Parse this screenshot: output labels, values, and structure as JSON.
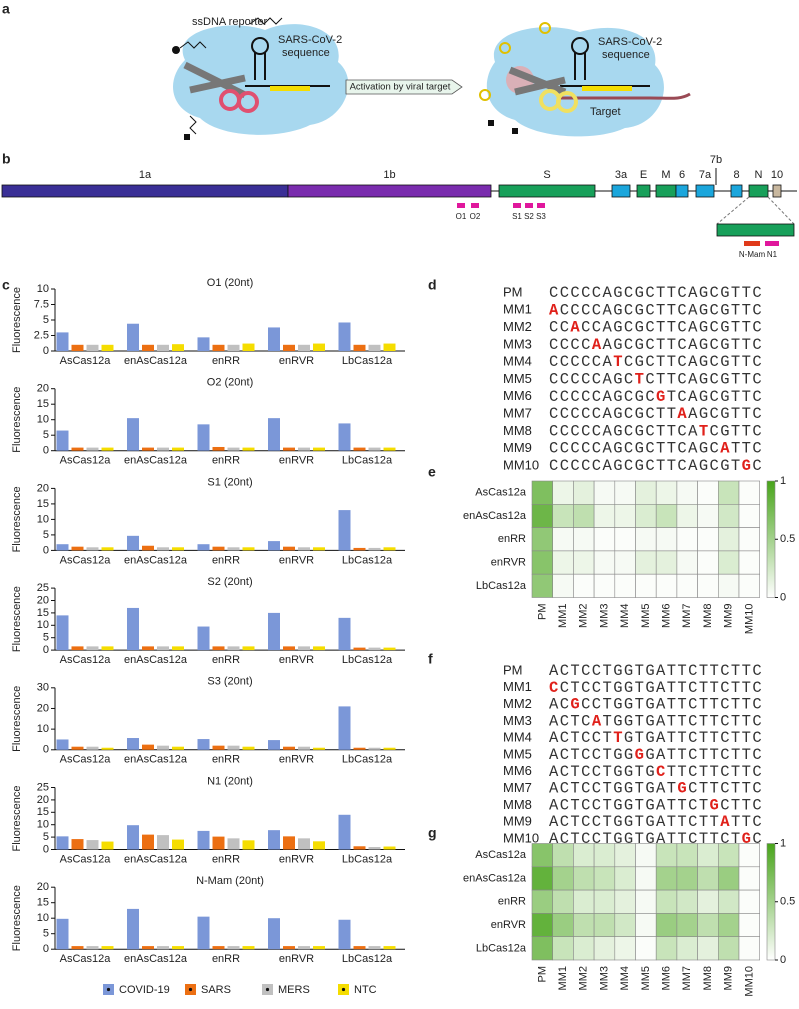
{
  "panel_labels": [
    "a",
    "b",
    "c",
    "d",
    "e",
    "f",
    "g"
  ],
  "schematic": {
    "reporter": "ssDNA reporter",
    "guide_left": [
      "SARS-CoV-2",
      "sequence"
    ],
    "activation": "Activation by viral target",
    "guide_right": [
      "SARS-CoV-2",
      "sequence"
    ],
    "target": "Target"
  },
  "genome": {
    "segments": [
      {
        "label": "1a",
        "color": "#3a2f96"
      },
      {
        "label": "1b",
        "color": "#7a2cae"
      },
      {
        "label": "S",
        "color": "#18a05a"
      },
      {
        "label": "3a",
        "color": "#1ba6dc"
      },
      {
        "label": "E",
        "color": "#18a05a"
      },
      {
        "label": "M",
        "color": "#18a05a"
      },
      {
        "label": "6",
        "color": "#1ba6dc"
      },
      {
        "label": "7a",
        "color": "#1ba6dc"
      },
      {
        "label": "8",
        "color": "#1ba6dc"
      },
      {
        "label": "N",
        "color": "#18a05a"
      },
      {
        "label": "10",
        "color": "#c8b79e"
      }
    ],
    "extra_label": "7b",
    "markers": [
      {
        "label": "O1",
        "color": "#e0179c"
      },
      {
        "label": "O2",
        "color": "#e0179c"
      },
      {
        "label": "S1",
        "color": "#e0179c"
      },
      {
        "label": "S2",
        "color": "#e0179c"
      },
      {
        "label": "S3",
        "color": "#e0179c"
      }
    ],
    "zoom_markers": [
      {
        "label": "N-Mam",
        "color": "#e03a1a"
      },
      {
        "label": "N1",
        "color": "#e0179c"
      }
    ]
  },
  "legend": [
    {
      "name": "COVID-19",
      "color": "#7b97d8"
    },
    {
      "name": "SARS",
      "color": "#ec6f12"
    },
    {
      "name": "MERS",
      "color": "#c0c0c0"
    },
    {
      "name": "NTC",
      "color": "#f5dd00"
    }
  ],
  "chart_data": [
    {
      "type": "bar",
      "title": "O1 (20nt)",
      "ylabel": "Fluorescence",
      "categories": [
        "AsCas12a",
        "enAsCas12a",
        "enRR",
        "enRVR",
        "LbCas12a"
      ],
      "series": [
        {
          "values": [
            3,
            4.4,
            2.2,
            3.8,
            4.6
          ]
        },
        {
          "values": [
            1,
            1,
            1,
            1,
            1
          ]
        },
        {
          "values": [
            1,
            1,
            1,
            1,
            1
          ]
        },
        {
          "values": [
            1,
            1.1,
            1.2,
            1.2,
            1.2
          ]
        }
      ],
      "ylim": [
        0,
        10
      ],
      "yticks": [
        0,
        2.5,
        5,
        7.5,
        10
      ]
    },
    {
      "type": "bar",
      "title": "O2 (20nt)",
      "ylabel": "Fluorescence",
      "categories": [
        "AsCas12a",
        "enAsCas12a",
        "enRR",
        "enRVR",
        "LbCas12a"
      ],
      "series": [
        {
          "values": [
            6.5,
            10.5,
            8.5,
            10.5,
            8.8
          ]
        },
        {
          "values": [
            1,
            1,
            1.2,
            1,
            1
          ]
        },
        {
          "values": [
            1,
            1,
            1,
            1,
            1
          ]
        },
        {
          "values": [
            1,
            1,
            1,
            1,
            1
          ]
        }
      ],
      "ylim": [
        0,
        20
      ],
      "yticks": [
        0,
        5,
        10,
        15,
        20
      ]
    },
    {
      "type": "bar",
      "title": "S1 (20nt)",
      "ylabel": "Fluorescence",
      "categories": [
        "AsCas12a",
        "enAsCas12a",
        "enRR",
        "enRVR",
        "LbCas12a"
      ],
      "series": [
        {
          "values": [
            2,
            4.7,
            2,
            3,
            13
          ]
        },
        {
          "values": [
            1.2,
            1.5,
            1.2,
            1.2,
            0.8
          ]
        },
        {
          "values": [
            1,
            1,
            1,
            1,
            0.8
          ]
        },
        {
          "values": [
            1,
            1,
            1,
            1,
            1
          ]
        }
      ],
      "ylim": [
        0,
        20
      ],
      "yticks": [
        0,
        5,
        10,
        15,
        20
      ]
    },
    {
      "type": "bar",
      "title": "S2 (20nt)",
      "ylabel": "Fluorescence",
      "categories": [
        "AsCas12a",
        "enAsCas12a",
        "enRR",
        "enRVR",
        "LbCas12a"
      ],
      "series": [
        {
          "values": [
            14,
            17,
            9.5,
            15,
            13
          ]
        },
        {
          "values": [
            1.5,
            1.5,
            1.5,
            1.5,
            1
          ]
        },
        {
          "values": [
            1.5,
            1.5,
            1.5,
            1.5,
            1
          ]
        },
        {
          "values": [
            1.5,
            1.5,
            1.5,
            1.5,
            1
          ]
        }
      ],
      "ylim": [
        0,
        25
      ],
      "yticks": [
        0,
        5,
        10,
        15,
        20,
        25
      ]
    },
    {
      "type": "bar",
      "title": "S3 (20nt)",
      "ylabel": "Fluorescence",
      "categories": [
        "AsCas12a",
        "enAsCas12a",
        "enRR",
        "enRVR",
        "LbCas12a"
      ],
      "series": [
        {
          "values": [
            5,
            5.7,
            5.2,
            4.7,
            21
          ]
        },
        {
          "values": [
            1.5,
            2.5,
            2,
            1.5,
            1
          ]
        },
        {
          "values": [
            1.5,
            2,
            2,
            1.5,
            1
          ]
        },
        {
          "values": [
            1,
            1.5,
            1.5,
            1,
            1
          ]
        }
      ],
      "ylim": [
        0,
        30
      ],
      "yticks": [
        0,
        10,
        20,
        30
      ]
    },
    {
      "type": "bar",
      "title": "N1 (20nt)",
      "ylabel": "Fluorescence",
      "categories": [
        "AsCas12a",
        "enAsCas12a",
        "enRR",
        "enRVR",
        "LbCas12a"
      ],
      "series": [
        {
          "values": [
            5.3,
            9.8,
            7.5,
            7.8,
            14
          ]
        },
        {
          "values": [
            4.2,
            6,
            5.2,
            5.3,
            1.3
          ]
        },
        {
          "values": [
            3.8,
            5.8,
            4.5,
            4.5,
            1
          ]
        },
        {
          "values": [
            3.2,
            4,
            3.7,
            3.3,
            1.2
          ]
        }
      ],
      "ylim": [
        0,
        25
      ],
      "yticks": [
        0,
        5,
        10,
        15,
        20,
        25
      ]
    },
    {
      "type": "bar",
      "title": "N-Mam (20nt)",
      "ylabel": "Fluorescence",
      "categories": [
        "AsCas12a",
        "enAsCas12a",
        "enRR",
        "enRVR",
        "LbCas12a"
      ],
      "series": [
        {
          "values": [
            9.8,
            13,
            10.5,
            10,
            9.5
          ]
        },
        {
          "values": [
            1,
            1,
            1,
            1,
            1
          ]
        },
        {
          "values": [
            1,
            1,
            1,
            1,
            1
          ]
        },
        {
          "values": [
            1,
            1,
            1,
            1,
            1
          ]
        }
      ],
      "ylim": [
        0,
        20
      ],
      "yticks": [
        0,
        5,
        10,
        15,
        20
      ]
    },
    {
      "type": "heatmap",
      "rows": [
        "AsCas12a",
        "enAsCas12a",
        "enRR",
        "enRVR",
        "LbCas12a"
      ],
      "columns": [
        "PM",
        "MM1",
        "MM2",
        "MM3",
        "MM4",
        "MM5",
        "MM6",
        "MM7",
        "MM8",
        "MM9",
        "MM10"
      ],
      "values": [
        [
          0.7,
          0.1,
          0.15,
          0.05,
          0.05,
          0.15,
          0.1,
          0.05,
          0.02,
          0.3,
          0.02
        ],
        [
          0.8,
          0.3,
          0.35,
          0.1,
          0.1,
          0.2,
          0.3,
          0.1,
          0.05,
          0.25,
          0.02
        ],
        [
          0.6,
          0.05,
          0.05,
          0.02,
          0.02,
          0.05,
          0.05,
          0.02,
          0.02,
          0.15,
          0.02
        ],
        [
          0.65,
          0.1,
          0.1,
          0.05,
          0.05,
          0.15,
          0.15,
          0.05,
          0.02,
          0.2,
          0.02
        ],
        [
          0.6,
          0.05,
          0.02,
          0.02,
          0.02,
          0.02,
          0.02,
          0.02,
          0.02,
          0.05,
          0.02
        ]
      ],
      "zlim": [
        0,
        1
      ],
      "zticks": [
        0,
        0.5,
        1
      ],
      "colormap": [
        "#ffffff",
        "#48a41a"
      ]
    },
    {
      "type": "heatmap",
      "rows": [
        "AsCas12a",
        "enAsCas12a",
        "enRR",
        "enRVR",
        "LbCas12a"
      ],
      "columns": [
        "PM",
        "MM1",
        "MM2",
        "MM3",
        "MM4",
        "MM5",
        "MM6",
        "MM7",
        "MM8",
        "MM9",
        "MM10"
      ],
      "values": [
        [
          0.65,
          0.35,
          0.2,
          0.2,
          0.15,
          0.05,
          0.3,
          0.3,
          0.2,
          0.3,
          0.02
        ],
        [
          0.85,
          0.5,
          0.35,
          0.3,
          0.2,
          0.05,
          0.5,
          0.5,
          0.35,
          0.55,
          0.02
        ],
        [
          0.55,
          0.35,
          0.2,
          0.2,
          0.15,
          0.05,
          0.3,
          0.25,
          0.15,
          0.25,
          0.02
        ],
        [
          0.85,
          0.55,
          0.35,
          0.35,
          0.25,
          0.05,
          0.55,
          0.5,
          0.35,
          0.5,
          0.02
        ],
        [
          0.7,
          0.3,
          0.2,
          0.15,
          0.1,
          0.02,
          0.3,
          0.2,
          0.15,
          0.35,
          0.02
        ]
      ],
      "zlim": [
        0,
        1
      ],
      "zticks": [
        0,
        0.5,
        1
      ],
      "colormap": [
        "#ffffff",
        "#48a41a"
      ]
    }
  ],
  "sequences_d": [
    {
      "label": "PM",
      "parts": [
        {
          "text": "CCCCCAGCGCTTCAGCGTTC"
        }
      ]
    },
    {
      "label": "MM1",
      "parts": [
        {
          "text": "A",
          "mismatch": true
        },
        {
          "text": "CCCCAGCGCTTCAGCGTTC"
        }
      ]
    },
    {
      "label": "MM2",
      "parts": [
        {
          "text": "CC"
        },
        {
          "text": "A",
          "mismatch": true
        },
        {
          "text": "CCAGCGCTTCAGCGTTC"
        }
      ]
    },
    {
      "label": "MM3",
      "parts": [
        {
          "text": "CCCC"
        },
        {
          "text": "A",
          "mismatch": true
        },
        {
          "text": "AGCGCTTCAGCGTTC"
        }
      ]
    },
    {
      "label": "MM4",
      "parts": [
        {
          "text": "CCCCCA"
        },
        {
          "text": "T",
          "mismatch": true
        },
        {
          "text": "CGCTTCAGCGTTC"
        }
      ]
    },
    {
      "label": "MM5",
      "parts": [
        {
          "text": "CCCCCAGC"
        },
        {
          "text": "T",
          "mismatch": true
        },
        {
          "text": "CTTCAGCGTTC"
        }
      ]
    },
    {
      "label": "MM6",
      "parts": [
        {
          "text": "CCCCCAGCGC"
        },
        {
          "text": "G",
          "mismatch": true
        },
        {
          "text": "TCAGCGTTC"
        }
      ]
    },
    {
      "label": "MM7",
      "parts": [
        {
          "text": "CCCCCAGCGCTT"
        },
        {
          "text": "A",
          "mismatch": true
        },
        {
          "text": "AGCGTTC"
        }
      ]
    },
    {
      "label": "MM8",
      "parts": [
        {
          "text": "CCCCCAGCGCTTCA"
        },
        {
          "text": "T",
          "mismatch": true
        },
        {
          "text": "CGTTC"
        }
      ]
    },
    {
      "label": "MM9",
      "parts": [
        {
          "text": "CCCCCAGCGCTTCAGC"
        },
        {
          "text": "A",
          "mismatch": true
        },
        {
          "text": "TTC"
        }
      ]
    },
    {
      "label": "MM10",
      "parts": [
        {
          "text": "CCCCCAGCGCTTCAGCGT"
        },
        {
          "text": "G",
          "mismatch": true
        },
        {
          "text": "C"
        }
      ]
    }
  ],
  "sequences_f": [
    {
      "label": "PM",
      "parts": [
        {
          "text": "ACTCCTGGTGATTCTTCTTC"
        }
      ]
    },
    {
      "label": "MM1",
      "parts": [
        {
          "text": "C",
          "mismatch": true
        },
        {
          "text": "CTCCTGGTGATTCTTCTTC"
        }
      ]
    },
    {
      "label": "MM2",
      "parts": [
        {
          "text": "AC"
        },
        {
          "text": "G",
          "mismatch": true
        },
        {
          "text": "CCTGGTGATTCTTCTTC"
        }
      ]
    },
    {
      "label": "MM3",
      "parts": [
        {
          "text": "ACTC"
        },
        {
          "text": "A",
          "mismatch": true
        },
        {
          "text": "TGGTGATTCTTCTTC"
        }
      ]
    },
    {
      "label": "MM4",
      "parts": [
        {
          "text": "ACTCCT"
        },
        {
          "text": "T",
          "mismatch": true
        },
        {
          "text": "GTGATTCTTCTTC"
        }
      ]
    },
    {
      "label": "MM5",
      "parts": [
        {
          "text": "ACTCCTGG"
        },
        {
          "text": "G",
          "mismatch": true
        },
        {
          "text": "GATTCTTCTTC"
        }
      ]
    },
    {
      "label": "MM6",
      "parts": [
        {
          "text": "ACTCCTGGTG"
        },
        {
          "text": "C",
          "mismatch": true
        },
        {
          "text": "TTCTTCTTC"
        }
      ]
    },
    {
      "label": "MM7",
      "parts": [
        {
          "text": "ACTCCTGGTGAT"
        },
        {
          "text": "G",
          "mismatch": true
        },
        {
          "text": "CTTCTTC"
        }
      ]
    },
    {
      "label": "MM8",
      "parts": [
        {
          "text": "ACTCCTGGTGATTCT"
        },
        {
          "text": "G",
          "mismatch": true
        },
        {
          "text": "CTTC"
        }
      ]
    },
    {
      "label": "MM9",
      "parts": [
        {
          "text": "ACTCCTGGTGATTCTT"
        },
        {
          "text": "A",
          "mismatch": true
        },
        {
          "text": "TTC"
        }
      ]
    },
    {
      "label": "MM10",
      "parts": [
        {
          "text": "ACTCCTGGTGATTCTTCT"
        },
        {
          "text": "G",
          "mismatch": true
        },
        {
          "text": "C"
        }
      ]
    }
  ]
}
